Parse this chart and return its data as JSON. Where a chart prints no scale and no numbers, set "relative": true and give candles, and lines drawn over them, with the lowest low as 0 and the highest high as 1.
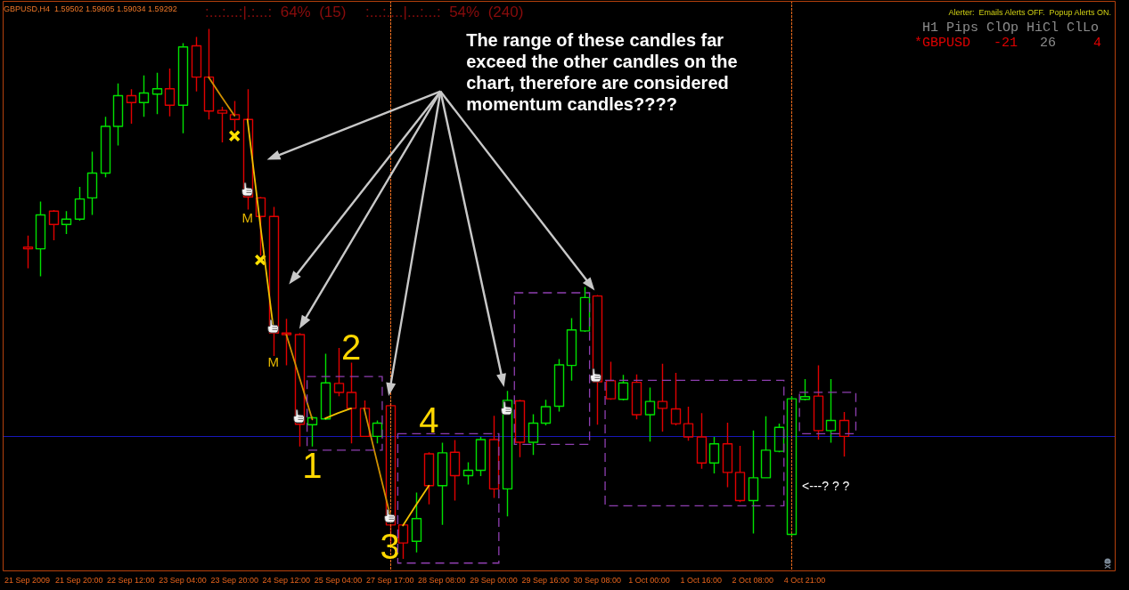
{
  "chart_data": {
    "type": "candlestick",
    "title": "GBPUSD,H4  1.59502 1.59605 1.59034 1.59292",
    "relative": true,
    "categories": [
      "21 Sep 2009",
      null,
      null,
      null,
      "21 Sep 20:00",
      null,
      null,
      null,
      "22 Sep 12:00",
      null,
      null,
      null,
      "23 Sep 04:00",
      null,
      null,
      null,
      "23 Sep 20:00",
      null,
      null,
      null,
      "24 Sep 12:00",
      null,
      null,
      null,
      "25 Sep 04:00",
      null,
      null,
      null,
      "27 Sep 17:00",
      null,
      null,
      null,
      "28 Sep 08:00",
      null,
      null,
      null,
      "29 Sep 00:00",
      null,
      null,
      null,
      "29 Sep 16:00",
      null,
      null,
      null,
      "30 Sep 08:00",
      null,
      null,
      null,
      "1 Oct 00:00",
      null,
      null,
      null,
      "1 Oct 16:00",
      null,
      null,
      null,
      "2 Oct 08:00",
      null,
      null,
      null,
      "4 Oct 21:00",
      null,
      null,
      null
    ],
    "ohlc": [
      [
        0.588,
        0.61,
        0.548,
        0.585
      ],
      [
        0.585,
        0.674,
        0.533,
        0.649
      ],
      [
        0.656,
        0.658,
        0.601,
        0.631
      ],
      [
        0.631,
        0.656,
        0.613,
        0.641
      ],
      [
        0.641,
        0.702,
        0.638,
        0.679
      ],
      [
        0.681,
        0.768,
        0.649,
        0.728
      ],
      [
        0.728,
        0.834,
        0.72,
        0.816
      ],
      [
        0.816,
        0.897,
        0.78,
        0.874
      ],
      [
        0.874,
        0.886,
        0.821,
        0.861
      ],
      [
        0.861,
        0.912,
        0.834,
        0.879
      ],
      [
        0.877,
        0.917,
        0.839,
        0.887
      ],
      [
        0.887,
        0.925,
        0.835,
        0.856
      ],
      [
        0.856,
        0.973,
        0.803,
        0.966
      ],
      [
        0.968,
        0.985,
        0.882,
        0.909
      ],
      [
        0.909,
        1,
        0.829,
        0.845
      ],
      [
        0.846,
        0.853,
        0.786,
        0.841
      ],
      [
        0.838,
        0.864,
        0.808,
        0.829
      ],
      [
        0.829,
        0.886,
        0.659,
        0.683
      ],
      [
        0.681,
        0.683,
        0.572,
        0.646
      ],
      [
        0.646,
        0.664,
        0.383,
        0.426
      ],
      [
        0.426,
        0.453,
        0.365,
        0.423
      ],
      [
        0.423,
        0.426,
        0.212,
        0.254
      ],
      [
        0.253,
        0.269,
        0.212,
        0.266
      ],
      [
        0.264,
        0.387,
        0.262,
        0.332
      ],
      [
        0.331,
        0.398,
        0.307,
        0.314
      ],
      [
        0.314,
        0.37,
        0.218,
        0.284
      ],
      [
        0.284,
        0.299,
        0.231,
        0.231
      ],
      [
        0.231,
        0.261,
        0.218,
        0.256
      ],
      [
        0.289,
        0.294,
        0.031,
        0.064
      ],
      [
        0.064,
        0.064,
        0,
        0.03
      ],
      [
        0.033,
        0.125,
        0.012,
        0.076
      ],
      [
        0.198,
        0.201,
        0.103,
        0.138
      ],
      [
        0.138,
        0.219,
        0.064,
        0.2
      ],
      [
        0.201,
        0.224,
        0.11,
        0.157
      ],
      [
        0.157,
        0.182,
        0.14,
        0.167
      ],
      [
        0.167,
        0.23,
        0.156,
        0.225
      ],
      [
        0.225,
        0.27,
        0.115,
        0.132
      ],
      [
        0.132,
        0.317,
        0.08,
        0.299
      ],
      [
        0.298,
        0.3,
        0.192,
        0.22
      ],
      [
        0.22,
        0.273,
        0.196,
        0.256
      ],
      [
        0.256,
        0.3,
        0.252,
        0.287
      ],
      [
        0.288,
        0.377,
        0.278,
        0.366
      ],
      [
        0.365,
        0.454,
        0.336,
        0.432
      ],
      [
        0.43,
        0.513,
        0.428,
        0.493
      ],
      [
        0.496,
        0.498,
        0.253,
        0.334
      ],
      [
        0.336,
        0.372,
        0.3,
        0.302
      ],
      [
        0.301,
        0.347,
        0.299,
        0.332
      ],
      [
        0.333,
        0.348,
        0.263,
        0.272
      ],
      [
        0.272,
        0.323,
        0.221,
        0.297
      ],
      [
        0.297,
        0.368,
        0.24,
        0.284
      ],
      [
        0.283,
        0.351,
        0.252,
        0.255
      ],
      [
        0.255,
        0.287,
        0.223,
        0.23
      ],
      [
        0.23,
        0.275,
        0.17,
        0.181
      ],
      [
        0.181,
        0.23,
        0.161,
        0.217
      ],
      [
        0.217,
        0.257,
        0.135,
        0.163
      ],
      [
        0.163,
        0.213,
        0.107,
        0.11
      ],
      [
        0.11,
        0.242,
        0.048,
        0.153
      ],
      [
        0.153,
        0.269,
        0.152,
        0.205
      ],
      [
        0.203,
        0.255,
        0.201,
        0.248
      ],
      [
        0.046,
        0.307,
        0.044,
        0.302
      ],
      [
        0.301,
        0.339,
        0.299,
        0.306
      ],
      [
        0.307,
        0.365,
        0.225,
        0.242
      ],
      [
        0.242,
        0.339,
        0.219,
        0.261
      ],
      [
        0.261,
        0.277,
        0.193,
        0.231
      ]
    ],
    "colors": [
      "#e00000",
      "#00e000",
      "#e00000",
      "#00e000",
      "#00e000",
      "#00e000",
      "#00e000",
      "#00e000",
      "#e00000",
      "#00e000",
      "#00e000",
      "#e00000",
      "#00e000",
      "#e00000",
      "#e00000",
      "#e00000",
      "#e00000",
      "#e00000",
      "#e00000",
      "#e00000",
      "#e00000",
      "#e00000",
      "#00e000",
      "#00e000",
      "#e00000",
      "#e00000",
      "#e00000",
      "#00e000",
      "#e00000",
      "#e00000",
      "#00e000",
      "#e00000",
      "#00e000",
      "#e00000",
      "#00e000",
      "#00e000",
      "#e00000",
      "#00e000",
      "#e00000",
      "#00e000",
      "#00e000",
      "#00e000",
      "#00e000",
      "#00e000",
      "#e00000",
      "#e00000",
      "#00e000",
      "#e00000",
      "#00e000",
      "#e00000",
      "#e00000",
      "#e00000",
      "#e00000",
      "#00e000",
      "#e00000",
      "#e00000",
      "#00e000",
      "#00e000",
      "#00e000",
      "#00e000",
      "#00e000",
      "#e00000",
      "#00e000",
      "#e00000"
    ],
    "series": [
      {
        "type": "line",
        "marker": "none",
        "color": "#d09000",
        "values": [
          null,
          null,
          null,
          null,
          null,
          null,
          null,
          null,
          null,
          null,
          null,
          null,
          null,
          null,
          0.909,
          0.872,
          0.836,
          null,
          null,
          null,
          0.423,
          0.343,
          0.263,
          null,
          null,
          null,
          0.284,
          0.183,
          0.083,
          null,
          null,
          null,
          null,
          null,
          null,
          null,
          null,
          null,
          null,
          null,
          null,
          null,
          null,
          null,
          null,
          null,
          null,
          null,
          null,
          null,
          null,
          null,
          null,
          null,
          null,
          null,
          null,
          null,
          null,
          null,
          null,
          null,
          null,
          null
        ]
      },
      {
        "type": "line",
        "marker": "none",
        "color": "#f0c000",
        "values": [
          null,
          null,
          null,
          null,
          null,
          null,
          null,
          null,
          null,
          null,
          null,
          null,
          null,
          null,
          null,
          null,
          null,
          0.829,
          0.628,
          0.435,
          null,
          null,
          null,
          0.265,
          0.275,
          0.284,
          null,
          null,
          null,
          0.063,
          0.101,
          0.138,
          null,
          null,
          null,
          null,
          null,
          null,
          null,
          null,
          null,
          null,
          null,
          null,
          null,
          null,
          null,
          null,
          null,
          null,
          null,
          null,
          null,
          null,
          null,
          null,
          null,
          null,
          null,
          null,
          null,
          null,
          null,
          null
        ]
      },
      {
        "type": "scatter",
        "marker": "cross",
        "color": "#ffe000",
        "values": [
          null,
          null,
          null,
          null,
          null,
          null,
          null,
          null,
          null,
          null,
          null,
          null,
          null,
          null,
          null,
          null,
          0.798,
          null,
          0.564,
          null,
          null,
          null,
          null,
          null,
          null,
          null,
          null,
          null,
          null,
          null,
          null,
          null,
          null,
          null,
          null,
          null,
          null,
          null,
          null,
          null,
          null,
          null,
          null,
          null,
          null,
          null,
          null,
          null,
          null,
          null,
          null,
          null,
          null,
          null,
          null,
          null,
          null,
          null,
          null,
          null,
          null,
          null,
          null,
          null
        ]
      }
    ],
    "ref_lines": [
      {
        "axis": "x",
        "value": "27 Sep 17:00",
        "color": "#f07020",
        "line_style": "dotted"
      },
      {
        "axis": "y",
        "value": 0.231,
        "color": "#1818b8",
        "line_style": "solid"
      }
    ],
    "annotations": [
      ":...:...:|.:...:  64%  (15)",
      ":...:....|...:...:  54%  (240)",
      "Alerter:  Emails Alerts OFF.  Popup Alerts ON.",
      "H1 Pips ClOp HiCl ClLo",
      "*GBPUSD",
      "-21",
      "26",
      "4",
      "The range of these candles far exceed the other candles on the chart, therefore are considered momentum candles????",
      "M",
      "M",
      "1",
      "2",
      "3",
      "4",
      "<---? ? ?"
    ]
  }
}
